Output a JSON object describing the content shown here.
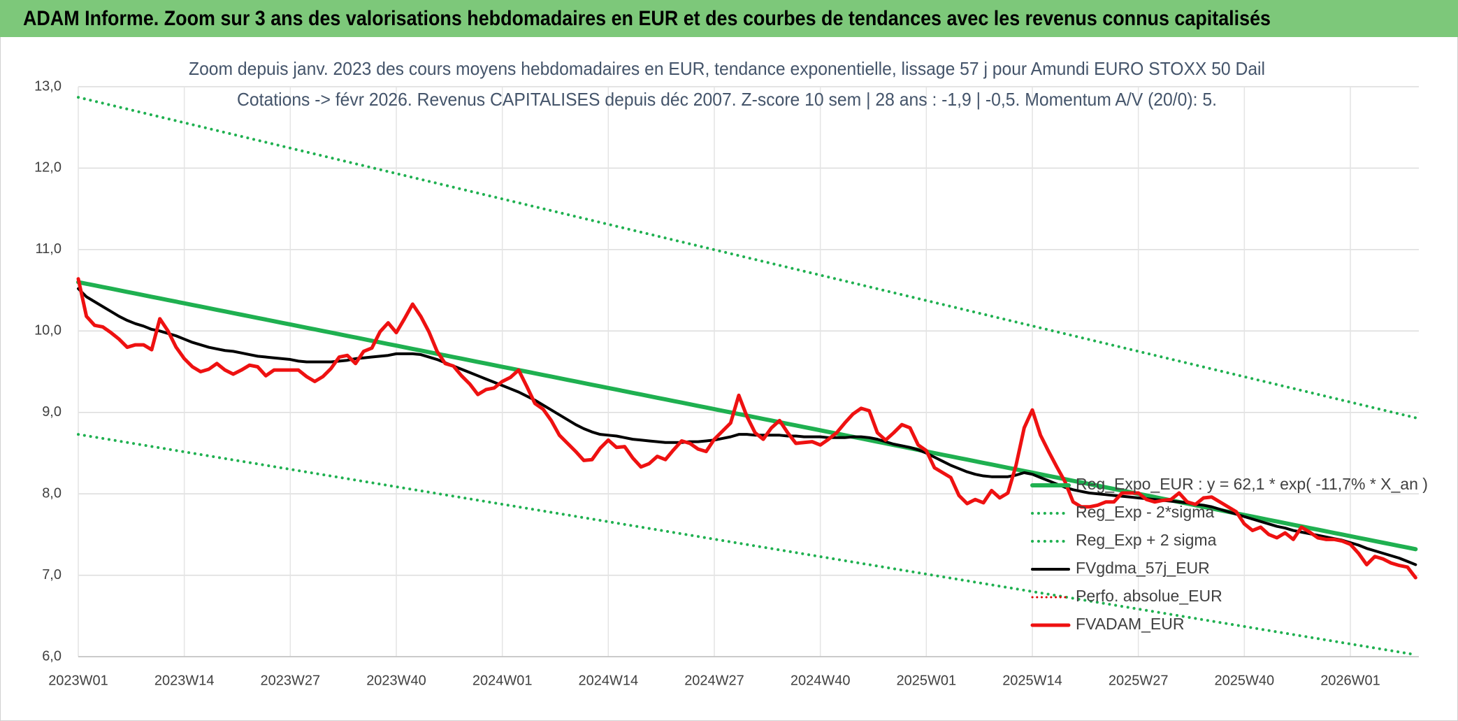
{
  "header": {
    "title": "ADAM Informe. Zoom sur 3 ans des valorisations hebdomadaires en EUR et des courbes de tendances avec les revenus connus capitalisés"
  },
  "chart_data": {
    "type": "line",
    "title": "Zoom depuis janv. 2023 des cours moyens hebdomadaires en EUR, tendance exponentielle, lissage 57 j pour Amundi EURO STOXX 50 Dail",
    "subtitle": "Cotations -> févr 2026. Revenus CAPITALISES depuis déc 2007. Z-score 10 sem | 28 ans : -1,9 | -0,5. Momentum A/V (20/0): 5.",
    "categories": [
      "2023W01",
      null,
      null,
      null,
      null,
      null,
      null,
      null,
      null,
      null,
      null,
      null,
      null,
      "2023W14",
      null,
      null,
      null,
      null,
      null,
      null,
      null,
      null,
      null,
      null,
      null,
      null,
      "2023W27",
      null,
      null,
      null,
      null,
      null,
      null,
      null,
      null,
      null,
      null,
      null,
      null,
      "2023W40",
      null,
      null,
      null,
      null,
      null,
      null,
      null,
      null,
      null,
      null,
      null,
      null,
      "2024W01",
      null,
      null,
      null,
      null,
      null,
      null,
      null,
      null,
      null,
      null,
      null,
      null,
      "2024W14",
      null,
      null,
      null,
      null,
      null,
      null,
      null,
      null,
      null,
      null,
      null,
      null,
      "2024W27",
      null,
      null,
      null,
      null,
      null,
      null,
      null,
      null,
      null,
      null,
      null,
      null,
      "2024W40",
      null,
      null,
      null,
      null,
      null,
      null,
      null,
      null,
      null,
      null,
      null,
      null,
      "2025W01",
      null,
      null,
      null,
      null,
      null,
      null,
      null,
      null,
      null,
      null,
      null,
      null,
      "2025W14",
      null,
      null,
      null,
      null,
      null,
      null,
      null,
      null,
      null,
      null,
      null,
      null,
      "2025W27",
      null,
      null,
      null,
      null,
      null,
      null,
      null,
      null,
      null,
      null,
      null,
      null,
      "2025W40",
      null,
      null,
      null,
      null,
      null,
      null,
      null,
      null,
      null,
      null,
      null,
      null,
      "2026W01",
      null,
      null,
      null,
      null,
      null,
      null,
      null,
      null
    ],
    "ylim": [
      6,
      13
    ],
    "yticks": [
      {
        "value": 6,
        "label": "6,0"
      },
      {
        "value": 7,
        "label": "7,0"
      },
      {
        "value": 8,
        "label": "8,0"
      },
      {
        "value": 9,
        "label": "9,0"
      },
      {
        "value": 10,
        "label": "10,0"
      },
      {
        "value": 11,
        "label": "11,0"
      },
      {
        "value": 12,
        "label": "12,0"
      },
      {
        "value": 13,
        "label": "13,0"
      }
    ],
    "grid": true,
    "legend": "right",
    "series": [
      {
        "name": "Reg_Expo_EUR : y = 62,1 * exp( -11,7% *  X_an )",
        "color": "#1fb050",
        "style": "solid",
        "width": 6,
        "values": [
          10.6,
          10.58,
          10.56,
          10.54,
          10.52,
          10.5,
          10.48,
          10.46,
          10.44,
          10.42,
          10.4,
          10.38,
          10.36,
          10.34,
          10.32,
          10.3,
          10.28,
          10.26,
          10.24,
          10.22,
          10.2,
          10.18,
          10.16,
          10.14,
          10.12,
          10.1,
          10.08,
          10.06,
          10.04,
          10.02,
          10.0,
          9.98,
          9.96,
          9.94,
          9.92,
          9.9,
          9.88,
          9.86,
          9.84,
          9.82,
          9.8,
          9.78,
          9.76,
          9.74,
          9.72,
          9.7,
          9.68,
          9.66,
          9.64,
          9.62,
          9.6,
          9.58,
          9.56,
          9.54,
          9.52,
          9.5,
          9.48,
          9.46,
          9.44,
          9.42,
          9.4,
          9.38,
          9.36,
          9.34,
          9.32,
          9.3,
          9.28,
          9.26,
          9.24,
          9.22,
          9.2,
          9.18,
          9.16,
          9.14,
          9.12,
          9.1,
          9.08,
          9.06,
          9.04,
          9.02,
          9.0,
          8.98,
          8.96,
          8.94,
          8.92,
          8.9,
          8.88,
          8.86,
          8.84,
          8.82,
          8.8,
          8.78,
          8.76,
          8.74,
          8.72,
          8.7,
          8.68,
          8.66,
          8.64,
          8.62,
          8.6,
          8.58,
          8.56,
          8.54,
          8.52,
          8.5,
          8.48,
          8.46,
          8.44,
          8.42,
          8.4,
          8.38,
          8.36,
          8.34,
          8.32,
          8.3,
          8.28,
          8.26,
          8.24,
          8.22,
          8.2,
          8.18,
          8.16,
          8.14,
          8.12,
          8.1,
          8.08,
          8.06,
          8.04,
          8.02,
          8.0,
          7.98,
          7.96,
          7.94,
          7.92,
          7.9,
          7.88,
          7.86,
          7.84,
          7.82,
          7.8,
          7.78,
          7.76,
          7.74,
          7.72,
          7.7,
          7.68,
          7.66,
          7.64,
          7.62,
          7.6,
          7.58,
          7.56,
          7.54,
          7.52,
          7.5,
          7.48,
          7.46,
          7.44,
          7.42,
          7.4,
          7.38,
          7.36,
          7.34,
          7.32
        ]
      },
      {
        "name": "Reg_Exp - 2*sigma",
        "color": "#1fb050",
        "style": "dotted",
        "width": 4,
        "values": [
          8.73,
          8.7135,
          8.697,
          8.6805,
          8.664,
          8.6475,
          8.631,
          8.6145,
          8.598,
          8.5815,
          8.565,
          8.5485,
          8.532,
          8.5155,
          8.499,
          8.4825,
          8.466,
          8.4495,
          8.433,
          8.4165,
          8.4,
          8.3835,
          8.367,
          8.3505,
          8.334,
          8.3175,
          8.301,
          8.2845,
          8.268,
          8.2515,
          8.235,
          8.2185,
          8.202,
          8.1855,
          8.169,
          8.1525,
          8.136,
          8.1195,
          8.103,
          8.0865,
          8.07,
          8.0535,
          8.037,
          8.0205,
          8.004,
          7.9875,
          7.971,
          7.9545,
          7.938,
          7.9215,
          7.905,
          7.8885,
          7.872,
          7.8555,
          7.839,
          7.8225,
          7.806,
          7.7895,
          7.773,
          7.7565,
          7.74,
          7.7235,
          7.707,
          7.6905,
          7.674,
          7.6575,
          7.641,
          7.6245,
          7.608,
          7.5915,
          7.575,
          7.5585,
          7.542,
          7.5255,
          7.509,
          7.4925,
          7.476,
          7.4595,
          7.443,
          7.4265,
          7.41,
          7.3935,
          7.377,
          7.3605,
          7.344,
          7.3275,
          7.311,
          7.2945,
          7.278,
          7.2615,
          7.245,
          7.2285,
          7.212,
          7.1955,
          7.179,
          7.1625,
          7.146,
          7.1295,
          7.113,
          7.0965,
          7.08,
          7.0635,
          7.047,
          7.0305,
          7.014,
          6.9975,
          6.981,
          6.9645,
          6.948,
          6.9315,
          6.915,
          6.8985,
          6.882,
          6.8655,
          6.849,
          6.8325,
          6.816,
          6.7995,
          6.783,
          6.7665,
          6.75,
          6.7335,
          6.717,
          6.7005,
          6.684,
          6.6675,
          6.651,
          6.6345,
          6.618,
          6.6015,
          6.585,
          6.5685,
          6.552,
          6.5355,
          6.519,
          6.5025,
          6.486,
          6.4695,
          6.453,
          6.4365,
          6.42,
          6.4035,
          6.387,
          6.3705,
          6.354,
          6.3375,
          6.321,
          6.3045,
          6.288,
          6.2715,
          6.255,
          6.2385,
          6.222,
          6.2055,
          6.189,
          6.1725,
          6.156,
          6.1395,
          6.123,
          6.1065,
          6.09,
          6.0735,
          6.057,
          6.0405,
          6.024
        ]
      },
      {
        "name": "Reg_Exp + 2 sigma",
        "color": "#1fb050",
        "style": "dotted",
        "width": 4,
        "values": [
          12.87,
          12.846,
          12.822,
          12.798,
          12.774,
          12.75,
          12.726,
          12.702,
          12.678,
          12.654,
          12.63,
          12.606,
          12.582,
          12.558,
          12.534,
          12.51,
          12.486,
          12.462,
          12.438,
          12.414,
          12.39,
          12.366,
          12.342,
          12.318,
          12.294,
          12.27,
          12.246,
          12.222,
          12.198,
          12.174,
          12.15,
          12.126,
          12.102,
          12.078,
          12.054,
          12.03,
          12.006,
          11.982,
          11.958,
          11.934,
          11.91,
          11.886,
          11.862,
          11.838,
          11.814,
          11.79,
          11.766,
          11.742,
          11.718,
          11.694,
          11.67,
          11.646,
          11.622,
          11.598,
          11.574,
          11.55,
          11.526,
          11.502,
          11.478,
          11.454,
          11.43,
          11.406,
          11.382,
          11.358,
          11.334,
          11.31,
          11.286,
          11.262,
          11.238,
          11.214,
          11.19,
          11.166,
          11.142,
          11.118,
          11.094,
          11.07,
          11.046,
          11.022,
          10.998,
          10.974,
          10.95,
          10.926,
          10.902,
          10.878,
          10.854,
          10.83,
          10.806,
          10.782,
          10.758,
          10.734,
          10.71,
          10.686,
          10.662,
          10.638,
          10.614,
          10.59,
          10.566,
          10.542,
          10.518,
          10.494,
          10.47,
          10.446,
          10.422,
          10.398,
          10.374,
          10.35,
          10.326,
          10.302,
          10.278,
          10.254,
          10.23,
          10.206,
          10.182,
          10.158,
          10.134,
          10.11,
          10.086,
          10.062,
          10.038,
          10.014,
          9.99,
          9.966,
          9.942,
          9.918,
          9.894,
          9.87,
          9.846,
          9.822,
          9.798,
          9.774,
          9.75,
          9.726,
          9.702,
          9.678,
          9.654,
          9.63,
          9.606,
          9.582,
          9.558,
          9.534,
          9.51,
          9.486,
          9.462,
          9.438,
          9.414,
          9.39,
          9.366,
          9.342,
          9.318,
          9.294,
          9.27,
          9.246,
          9.222,
          9.198,
          9.174,
          9.15,
          9.126,
          9.102,
          9.078,
          9.054,
          9.03,
          9.006,
          8.982,
          8.958,
          8.934
        ]
      },
      {
        "name": "FVgdma_57j_EUR",
        "color": "#000000",
        "style": "solid",
        "width": 4,
        "values": [
          10.52,
          10.42,
          10.36,
          10.3,
          10.24,
          10.18,
          10.13,
          10.09,
          10.06,
          10.02,
          10.0,
          9.97,
          9.94,
          9.9,
          9.86,
          9.83,
          9.8,
          9.78,
          9.76,
          9.75,
          9.73,
          9.71,
          9.69,
          9.68,
          9.67,
          9.66,
          9.65,
          9.63,
          9.62,
          9.62,
          9.62,
          9.62,
          9.63,
          9.64,
          9.66,
          9.67,
          9.68,
          9.69,
          9.7,
          9.72,
          9.72,
          9.72,
          9.71,
          9.68,
          9.65,
          9.61,
          9.57,
          9.53,
          9.49,
          9.45,
          9.41,
          9.37,
          9.33,
          9.29,
          9.25,
          9.2,
          9.15,
          9.09,
          9.03,
          8.97,
          8.91,
          8.85,
          8.8,
          8.76,
          8.73,
          8.72,
          8.71,
          8.69,
          8.67,
          8.66,
          8.65,
          8.64,
          8.63,
          8.63,
          8.63,
          8.64,
          8.64,
          8.65,
          8.66,
          8.68,
          8.7,
          8.73,
          8.73,
          8.72,
          8.72,
          8.72,
          8.72,
          8.71,
          8.71,
          8.7,
          8.7,
          8.7,
          8.69,
          8.69,
          8.69,
          8.7,
          8.7,
          8.69,
          8.67,
          8.64,
          8.61,
          8.59,
          8.57,
          8.54,
          8.5,
          8.45,
          8.4,
          8.35,
          8.31,
          8.27,
          8.24,
          8.22,
          8.21,
          8.21,
          8.21,
          8.23,
          8.26,
          8.24,
          8.2,
          8.16,
          8.12,
          8.08,
          8.05,
          8.03,
          8.01,
          8.0,
          7.99,
          7.98,
          7.97,
          7.96,
          7.95,
          7.94,
          7.93,
          7.92,
          7.91,
          7.9,
          7.89,
          7.87,
          7.86,
          7.84,
          7.81,
          7.78,
          7.75,
          7.72,
          7.69,
          7.66,
          7.63,
          7.6,
          7.58,
          7.55,
          7.53,
          7.51,
          7.49,
          7.47,
          7.45,
          7.43,
          7.4,
          7.37,
          7.33,
          7.3,
          7.27,
          7.24,
          7.21,
          7.17,
          7.13
        ]
      },
      {
        "name": "Perfo. absolue_EUR",
        "color": "#e00000",
        "style": "dotted",
        "width": 3
      },
      {
        "name": "FVADAM_EUR",
        "color": "#ee1111",
        "style": "solid",
        "width": 5,
        "values": [
          10.64,
          10.18,
          10.07,
          10.05,
          9.98,
          9.9,
          9.8,
          9.83,
          9.83,
          9.77,
          10.15,
          10.0,
          9.8,
          9.66,
          9.56,
          9.5,
          9.53,
          9.6,
          9.52,
          9.47,
          9.52,
          9.58,
          9.56,
          9.45,
          9.52,
          9.52,
          9.52,
          9.52,
          9.44,
          9.38,
          9.44,
          9.54,
          9.68,
          9.7,
          9.6,
          9.75,
          9.79,
          9.99,
          10.1,
          9.98,
          10.15,
          10.33,
          10.18,
          9.99,
          9.75,
          9.6,
          9.57,
          9.45,
          9.35,
          9.22,
          9.28,
          9.3,
          9.38,
          9.43,
          9.52,
          9.32,
          9.11,
          9.04,
          8.9,
          8.72,
          8.62,
          8.52,
          8.41,
          8.42,
          8.56,
          8.66,
          8.57,
          8.58,
          8.44,
          8.33,
          8.37,
          8.46,
          8.42,
          8.54,
          8.65,
          8.62,
          8.55,
          8.52,
          8.67,
          8.77,
          8.87,
          9.21,
          8.95,
          8.75,
          8.67,
          8.81,
          8.9,
          8.75,
          8.62,
          8.63,
          8.64,
          8.6,
          8.67,
          8.75,
          8.87,
          8.98,
          9.05,
          9.02,
          8.75,
          8.66,
          8.75,
          8.85,
          8.81,
          8.6,
          8.53,
          8.32,
          8.26,
          8.2,
          7.98,
          7.88,
          7.93,
          7.89,
          8.04,
          7.95,
          8.01,
          8.35,
          8.81,
          9.03,
          8.72,
          8.52,
          8.33,
          8.15,
          7.9,
          7.84,
          7.84,
          7.86,
          7.9,
          7.9,
          8.01,
          8.01,
          8.01,
          7.93,
          7.9,
          7.92,
          7.93,
          8.01,
          7.9,
          7.87,
          7.95,
          7.96,
          7.9,
          7.84,
          7.78,
          7.63,
          7.55,
          7.59,
          7.5,
          7.46,
          7.52,
          7.44,
          7.59,
          7.53,
          7.46,
          7.44,
          7.44,
          7.42,
          7.38,
          7.27,
          7.13,
          7.23,
          7.2,
          7.15,
          7.12,
          7.1,
          6.97
        ]
      }
    ]
  }
}
